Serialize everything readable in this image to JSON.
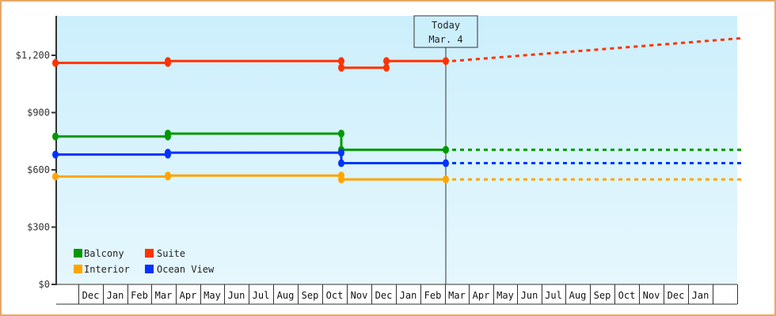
{
  "chart_data": {
    "type": "line",
    "title": "",
    "xlabel": "",
    "ylabel": "",
    "ylim": [
      0,
      1400
    ],
    "y_ticks": [
      {
        "value": 0,
        "label": "$0"
      },
      {
        "value": 300,
        "label": "$300"
      },
      {
        "value": 600,
        "label": "$600"
      },
      {
        "value": 900,
        "label": "$900"
      },
      {
        "value": 1200,
        "label": "$1,200"
      }
    ],
    "x_months": [
      "",
      "Dec",
      "Jan",
      "Feb",
      "Mar",
      "Apr",
      "May",
      "Jun",
      "Jul",
      "Aug",
      "Sep",
      "Oct",
      "Nov",
      "Dec",
      "Jan",
      "Feb",
      "Mar",
      "Apr",
      "May",
      "Jun",
      "Jul",
      "Aug",
      "Sep",
      "Oct",
      "Nov",
      "Dec",
      "Jan",
      ""
    ],
    "today_marker": {
      "line1": "Today",
      "line2": "Mar. 4"
    },
    "grid": false,
    "legend_position": "bottom-left inside",
    "series": [
      {
        "name": "Suite",
        "color": "#ff3300",
        "points": [
          {
            "x": "Nov (start)",
            "value": 1160
          },
          {
            "x": "Mar",
            "value": 1160
          },
          {
            "x": "Mar",
            "value": 1170
          },
          {
            "x": "Oct",
            "value": 1170
          },
          {
            "x": "Oct",
            "value": 1135
          },
          {
            "x": "Dec",
            "value": 1135
          },
          {
            "x": "Dec",
            "value": 1170
          },
          {
            "x": "Today Mar. 4",
            "value": 1170
          }
        ],
        "projection": [
          {
            "x": "Today Mar. 4",
            "value": 1170
          },
          {
            "x": "Jan (end)",
            "value": 1290
          }
        ]
      },
      {
        "name": "Balcony",
        "color": "#009900",
        "points": [
          {
            "x": "Nov (start)",
            "value": 775
          },
          {
            "x": "Mar",
            "value": 775
          },
          {
            "x": "Mar",
            "value": 790
          },
          {
            "x": "Oct",
            "value": 790
          },
          {
            "x": "Oct",
            "value": 705
          },
          {
            "x": "Today Mar. 4",
            "value": 705
          }
        ],
        "projection": [
          {
            "x": "Today Mar. 4",
            "value": 705
          },
          {
            "x": "Jan (end)",
            "value": 705
          }
        ]
      },
      {
        "name": "Ocean View",
        "color": "#0033ff",
        "points": [
          {
            "x": "Nov (start)",
            "value": 680
          },
          {
            "x": "Mar",
            "value": 680
          },
          {
            "x": "Mar",
            "value": 690
          },
          {
            "x": "Oct",
            "value": 690
          },
          {
            "x": "Oct",
            "value": 635
          },
          {
            "x": "Today Mar. 4",
            "value": 635
          }
        ],
        "projection": [
          {
            "x": "Today Mar. 4",
            "value": 635
          },
          {
            "x": "Jan (end)",
            "value": 635
          }
        ]
      },
      {
        "name": "Interior",
        "color": "#ffa500",
        "points": [
          {
            "x": "Nov (start)",
            "value": 565
          },
          {
            "x": "Mar",
            "value": 565
          },
          {
            "x": "Mar",
            "value": 570
          },
          {
            "x": "Oct",
            "value": 570
          },
          {
            "x": "Oct",
            "value": 550
          },
          {
            "x": "Today Mar. 4",
            "value": 550
          }
        ],
        "projection": [
          {
            "x": "Today Mar. 4",
            "value": 550
          },
          {
            "x": "Jan (end)",
            "value": 550
          }
        ]
      }
    ]
  },
  "legend": {
    "items": [
      {
        "label": "Balcony",
        "color": "#009900"
      },
      {
        "label": "Suite",
        "color": "#ff3300"
      },
      {
        "label": "Interior",
        "color": "#ffa500"
      },
      {
        "label": "Ocean View",
        "color": "#0033ff"
      }
    ]
  },
  "colors": {
    "frame_border": "#e8a866",
    "plot_bg_top": "#cceffc",
    "plot_bg_bottom": "#e6f7fd",
    "axis": "#333333"
  }
}
